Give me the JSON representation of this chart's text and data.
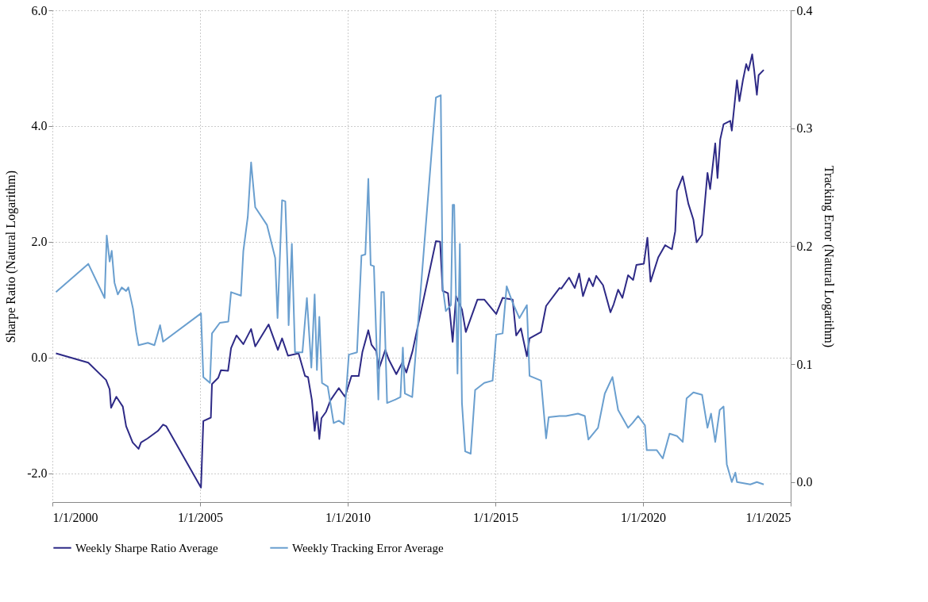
{
  "chart_data": {
    "type": "line",
    "ylabel": "Sharpe Ratio (Natural Logarithm)",
    "y2label": "Tracking Error (Natural Logarithm)",
    "xlim": [
      "2000-01-01",
      "2025-01-01"
    ],
    "xticks": [
      {
        "value": "2000-01-01",
        "label": "1/1/2000"
      },
      {
        "value": "2005-01-01",
        "label": "1/1/2005"
      },
      {
        "value": "2010-01-01",
        "label": "1/1/2010"
      },
      {
        "value": "2015-01-01",
        "label": "1/1/2015"
      },
      {
        "value": "2020-01-01",
        "label": "1/1/2020"
      },
      {
        "value": "2025-01-01",
        "label": "1/1/2025"
      }
    ],
    "ylim": [
      -2.5,
      6.0
    ],
    "yticks": [
      {
        "value": -2,
        "label": "-2.0"
      },
      {
        "value": 0,
        "label": "0.0"
      },
      {
        "value": 2,
        "label": "2.0"
      },
      {
        "value": 4,
        "label": "4.0"
      },
      {
        "value": 6,
        "label": "6.0"
      }
    ],
    "y2lim": [
      -0.017,
      0.4
    ],
    "y2ticks": [
      {
        "value": 0,
        "label": "0.0"
      },
      {
        "value": 0.1,
        "label": "0.1"
      },
      {
        "value": 0.2,
        "label": "0.2"
      },
      {
        "value": 0.3,
        "label": "0.3"
      },
      {
        "value": 0.4,
        "label": "0.4"
      }
    ],
    "grid": true,
    "legend": "bottom",
    "line_style": "solid",
    "marker": "none",
    "series": [
      {
        "name": "Weekly Sharpe Ratio Average",
        "color": "#2e2a86",
        "x": [
          "2000-02-14",
          "2001-03-20",
          "2001-10-26",
          "2001-12-09",
          "2001-12-27",
          "2002-03-02",
          "2002-05-21",
          "2002-07-01",
          "2002-09-20",
          "2002-12-02",
          "2003-01-01",
          "2003-03-24",
          "2003-07-29",
          "2003-10-01",
          "2003-11-10",
          "2005-01-12",
          "2005-02-10",
          "2005-05-14",
          "2005-05-28",
          "2005-08-14",
          "2005-09-16",
          "2005-12-13",
          "2006-01-19",
          "2006-03-27",
          "2006-06-20",
          "2006-09-24",
          "2006-11-14",
          "2007-04-29",
          "2007-08-21",
          "2007-10-12",
          "2007-12-24",
          "2008-05-03",
          "2008-07-22",
          "2008-08-28",
          "2008-10-15",
          "2008-11-18",
          "2008-12-16",
          "2009-01-15",
          "2009-02-10",
          "2009-04-08",
          "2009-06-02",
          "2009-09-13",
          "2009-11-28",
          "2010-02-17",
          "2010-05-17",
          "2010-07-01",
          "2010-09-13",
          "2010-10-22",
          "2010-12-20",
          "2011-01-22",
          "2011-04-11",
          "2011-05-25",
          "2011-08-25",
          "2011-11-07",
          "2011-12-27",
          "2012-03-13",
          "2012-12-27",
          "2013-02-17",
          "2013-03-20",
          "2013-05-25",
          "2013-07-22",
          "2013-09-02",
          "2013-11-14",
          "2014-01-01",
          "2014-05-25",
          "2014-08-17",
          "2015-01-12",
          "2015-04-01",
          "2015-08-03",
          "2015-09-16",
          "2015-11-14",
          "2016-01-26",
          "2016-02-28",
          "2016-07-19",
          "2016-09-20",
          "2017-03-05",
          "2017-03-27",
          "2017-07-01",
          "2017-09-09",
          "2017-11-03",
          "2017-12-20",
          "2018-03-05",
          "2018-04-22",
          "2018-06-02",
          "2018-08-25",
          "2018-11-25",
          "2019-01-04",
          "2019-02-28",
          "2019-04-22",
          "2019-07-01",
          "2019-09-02",
          "2019-10-12",
          "2020-01-12",
          "2020-02-25",
          "2020-04-04",
          "2020-07-08",
          "2020-10-01",
          "2020-12-24",
          "2021-02-03",
          "2021-02-25",
          "2021-05-07",
          "2021-07-15",
          "2021-09-16",
          "2021-10-26",
          "2022-01-01",
          "2022-03-09",
          "2022-04-11",
          "2022-06-13",
          "2022-07-11",
          "2022-08-14",
          "2022-09-24",
          "2022-12-16",
          "2023-01-04",
          "2023-03-09",
          "2023-04-08",
          "2023-05-21",
          "2023-07-01",
          "2023-07-29",
          "2023-09-13",
          "2023-10-08",
          "2023-11-10",
          "2023-12-02",
          "2024-02-03"
        ],
        "values": [
          0.07,
          -0.09,
          -0.39,
          -0.55,
          -0.87,
          -0.68,
          -0.85,
          -1.19,
          -1.47,
          -1.58,
          -1.47,
          -1.4,
          -1.27,
          -1.16,
          -1.19,
          -2.25,
          -1.1,
          -1.04,
          -0.46,
          -0.35,
          -0.22,
          -0.23,
          0.16,
          0.38,
          0.23,
          0.49,
          0.19,
          0.57,
          0.13,
          0.33,
          0.03,
          0.07,
          -0.32,
          -0.34,
          -0.74,
          -1.27,
          -0.94,
          -1.41,
          -1.05,
          -0.94,
          -0.74,
          -0.53,
          -0.68,
          -0.32,
          -0.32,
          0.09,
          0.47,
          0.22,
          0.11,
          -0.2,
          0.13,
          -0.04,
          -0.29,
          -0.09,
          -0.26,
          0.11,
          2.01,
          2.0,
          1.15,
          1.11,
          0.27,
          1.06,
          0.83,
          0.44,
          1.0,
          1.0,
          0.75,
          1.03,
          1.0,
          0.38,
          0.5,
          0.02,
          0.33,
          0.44,
          0.89,
          1.2,
          1.19,
          1.38,
          1.2,
          1.45,
          1.06,
          1.37,
          1.23,
          1.41,
          1.25,
          0.78,
          0.92,
          1.17,
          1.03,
          1.42,
          1.34,
          1.6,
          1.62,
          2.07,
          1.31,
          1.73,
          1.94,
          1.87,
          2.18,
          2.88,
          3.13,
          2.66,
          2.38,
          1.99,
          2.12,
          3.19,
          2.91,
          3.7,
          3.1,
          3.77,
          4.03,
          4.09,
          3.92,
          4.79,
          4.43,
          4.79,
          5.07,
          4.96,
          5.24,
          4.96,
          4.54,
          4.88,
          4.97
        ]
      },
      {
        "name": "Weekly Tracking Error Average",
        "color": "#6a9fcf",
        "axis": "y2",
        "x": [
          "2000-02-14",
          "2001-03-20",
          "2001-10-08",
          "2001-11-03",
          "2001-12-09",
          "2002-01-04",
          "2002-02-07",
          "2002-03-20",
          "2002-05-07",
          "2002-07-01",
          "2002-07-29",
          "2002-09-24",
          "2002-11-03",
          "2002-12-02",
          "2003-03-27",
          "2003-06-16",
          "2003-08-25",
          "2003-10-01",
          "2005-01-12",
          "2005-02-10",
          "2005-05-03",
          "2005-05-28",
          "2005-09-02",
          "2005-12-16",
          "2006-01-19",
          "2006-05-21",
          "2006-06-20",
          "2006-08-14",
          "2006-09-24",
          "2006-11-14",
          "2007-04-08",
          "2007-07-19",
          "2007-08-17",
          "2007-10-12",
          "2007-11-21",
          "2007-12-20",
          "2008-01-01",
          "2008-02-10",
          "2008-03-20",
          "2008-06-20",
          "2008-08-14",
          "2008-10-08",
          "2008-11-18",
          "2008-12-16",
          "2009-01-15",
          "2009-02-17",
          "2009-04-29",
          "2009-07-11",
          "2009-09-13",
          "2009-11-14",
          "2010-01-15",
          "2010-04-26",
          "2010-06-20",
          "2010-08-07",
          "2010-09-13",
          "2010-10-12",
          "2010-11-21",
          "2011-01-15",
          "2011-02-21",
          "2011-03-24",
          "2011-05-03",
          "2011-08-17",
          "2011-10-15",
          "2011-11-14",
          "2011-12-09",
          "2012-03-09",
          "2012-12-27",
          "2013-02-25",
          "2013-03-20",
          "2013-04-29",
          "2013-07-01",
          "2013-07-22",
          "2013-08-10",
          "2013-09-20",
          "2013-10-19",
          "2013-11-14",
          "2013-12-24",
          "2014-03-02",
          "2014-04-26",
          "2014-08-17",
          "2014-11-28",
          "2015-01-12",
          "2015-04-01",
          "2015-05-21",
          "2015-08-03",
          "2015-10-26",
          "2016-01-26",
          "2016-02-28",
          "2016-07-19",
          "2016-09-20",
          "2016-10-22",
          "2017-03-05",
          "2017-05-25",
          "2017-10-19",
          "2018-01-12",
          "2018-02-25",
          "2018-06-24",
          "2018-09-16",
          "2018-12-20",
          "2019-02-28",
          "2019-07-01",
          "2019-08-25",
          "2019-11-03",
          "2020-01-26",
          "2020-02-17",
          "2020-06-20",
          "2020-09-02",
          "2020-11-25",
          "2021-02-25",
          "2021-05-07",
          "2021-06-24",
          "2021-09-16",
          "2022-01-01",
          "2022-03-09",
          "2022-04-22",
          "2022-06-13",
          "2022-08-07",
          "2022-09-24",
          "2022-11-03",
          "2023-01-04",
          "2023-02-17",
          "2023-03-09",
          "2023-08-21",
          "2023-11-10",
          "2024-02-03"
        ],
        "values": [
          0.161,
          0.185,
          0.156,
          0.209,
          0.187,
          0.196,
          0.169,
          0.159,
          0.165,
          0.162,
          0.165,
          0.147,
          0.127,
          0.116,
          0.118,
          0.116,
          0.133,
          0.119,
          0.143,
          0.089,
          0.084,
          0.126,
          0.135,
          0.136,
          0.161,
          0.158,
          0.196,
          0.225,
          0.271,
          0.233,
          0.218,
          0.19,
          0.139,
          0.239,
          0.238,
          0.18,
          0.133,
          0.202,
          0.11,
          0.11,
          0.156,
          0.097,
          0.159,
          0.095,
          0.14,
          0.084,
          0.081,
          0.05,
          0.052,
          0.049,
          0.108,
          0.11,
          0.192,
          0.193,
          0.257,
          0.184,
          0.183,
          0.07,
          0.161,
          0.161,
          0.067,
          0.07,
          0.072,
          0.114,
          0.075,
          0.072,
          0.326,
          0.328,
          0.166,
          0.145,
          0.15,
          0.235,
          0.235,
          0.092,
          0.202,
          0.067,
          0.026,
          0.024,
          0.078,
          0.084,
          0.086,
          0.125,
          0.126,
          0.166,
          0.152,
          0.139,
          0.15,
          0.09,
          0.086,
          0.037,
          0.055,
          0.056,
          0.056,
          0.058,
          0.056,
          0.036,
          0.046,
          0.075,
          0.089,
          0.061,
          0.046,
          0.05,
          0.056,
          0.048,
          0.027,
          0.027,
          0.02,
          0.041,
          0.039,
          0.034,
          0.071,
          0.076,
          0.074,
          0.046,
          0.058,
          0.034,
          0.061,
          0.064,
          0.015,
          0.0,
          0.008,
          0.0,
          -0.002,
          0.0,
          -0.002
        ]
      }
    ]
  }
}
